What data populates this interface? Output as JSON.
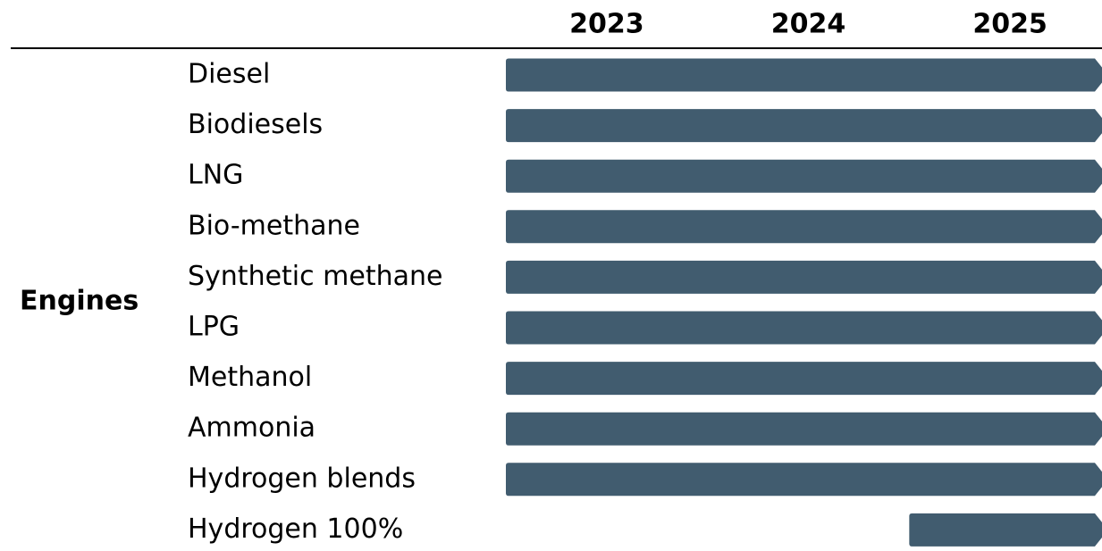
{
  "chart_data": {
    "type": "gantt",
    "group": "Engines",
    "categories": [
      "Diesel",
      "Biodiesels",
      "LNG",
      "Bio-methane",
      "Synthetic methane",
      "LPG",
      "Methanol",
      "Ammonia",
      "Hydrogen blends",
      "Hydrogen 100%"
    ],
    "start": [
      2023,
      2023,
      2023,
      2023,
      2023,
      2023,
      2023,
      2023,
      2023,
      2025
    ],
    "end": [
      2026,
      2026,
      2026,
      2026,
      2026,
      2026,
      2026,
      2026,
      2026,
      2026
    ],
    "color": "#415c6f",
    "xlim": [
      2023,
      2026
    ],
    "xticks": [
      2023,
      2024,
      2025
    ]
  }
}
